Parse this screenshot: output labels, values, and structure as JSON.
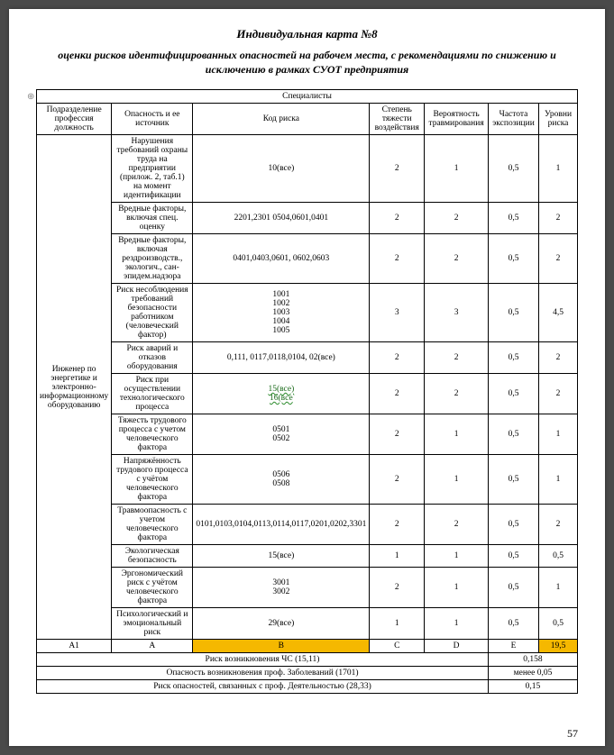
{
  "title": "Индивидуальная карта №8",
  "subtitle": "оценки рисков идентифицированных опасностей на рабочем места, с рекомендациями по снижению и исключению в рамках СУОТ предприятия",
  "table": {
    "superheader": "Специалисты",
    "headers": {
      "col1": "Подразделение профессия должность",
      "col2": "Опасность и ее источник",
      "col3": "Код риска",
      "col4": "Степень тяжести воздействия",
      "col5": "Вероятность травмирования",
      "col6": "Частота экспозиции",
      "col7": "Уровни риска"
    },
    "group_label": "Инженер по энергетике и электронно-информационному оборудованию",
    "rows": [
      {
        "c2": "Нарушения требований охраны труда на предприятии (прилож. 2, таб.1) на момент идентификации",
        "c3": "10(все)",
        "c4": "2",
        "c5": "1",
        "c6": "0,5",
        "c7": "1"
      },
      {
        "c2": "Вредные факторы, включая спец. оценку",
        "c3": "2201,2301 0504,0601,0401",
        "c4": "2",
        "c5": "2",
        "c6": "0,5",
        "c7": "2"
      },
      {
        "c2": "Вредные факторы, включая рездроизводств., экологич., сан-эпидем.надзора",
        "c3": "0401,0403,0601, 0602,0603",
        "c4": "2",
        "c5": "2",
        "c6": "0,5",
        "c7": "2"
      },
      {
        "c2": "Риск несоблюдения требований безопасности работником (человеческий фактор)",
        "c3": "1001\n1002\n1003\n1004\n1005",
        "c4": "3",
        "c5": "3",
        "c6": "0,5",
        "c7": "4,5"
      },
      {
        "c2": "Риск аварий и отказов оборудования",
        "c3": "0,111, 0117,0118,0104, 02(все)",
        "c4": "2",
        "c5": "2",
        "c6": "0,5",
        "c7": "2"
      },
      {
        "c2": "Риск при осуществлении технологического процесса",
        "c3_wavy": "15(все)\n16(все",
        "c4": "2",
        "c5": "2",
        "c6": "0,5",
        "c7": "2"
      },
      {
        "c2": "Тяжесть трудового процесса с учетом человеческого фактора",
        "c3": "0501\n0502",
        "c4": "2",
        "c5": "1",
        "c6": "0,5",
        "c7": "1"
      },
      {
        "c2": "Напряжённость трудового процесса с учётом человеческого фактора",
        "c3": "0506\n0508",
        "c4": "2",
        "c5": "1",
        "c6": "0,5",
        "c7": "1"
      },
      {
        "c2": "Травмоопасность с учетом человеческого фактора",
        "c3": "0101,0103,0104,0113,0114,0117,0201,0202,3301",
        "c4": "2",
        "c5": "2",
        "c6": "0,5",
        "c7": "2"
      },
      {
        "c2": "Экологическая безопасность",
        "c3": "15(все)",
        "c4": "1",
        "c5": "1",
        "c6": "0,5",
        "c7": "0,5"
      },
      {
        "c2": "Эргономический риск с учётом человеческого фактора",
        "c3": "3001\n3002",
        "c4": "2",
        "c5": "1",
        "c6": "0,5",
        "c7": "1"
      },
      {
        "c2": "Психологический и эмоциональный риск",
        "c3": "29(все)",
        "c4": "1",
        "c5": "1",
        "c6": "0,5",
        "c7": "0,5"
      }
    ],
    "summary": {
      "a1": "A1",
      "a": "A",
      "b": "B",
      "c": "C",
      "d": "D",
      "e": "E",
      "total": "19,5"
    },
    "footers": [
      {
        "label": "Риск возникновения ЧС (15,11)",
        "value": "0,158"
      },
      {
        "label": "Опасность возникновения проф. Заболеваний (1701)",
        "value": "менее 0,05"
      },
      {
        "label": "Риск опасностей, связанных с проф. Деятельностью (28,33)",
        "value": "0,15"
      }
    ]
  },
  "pagenum": "57",
  "colors": {
    "highlight": "#f5b800"
  }
}
